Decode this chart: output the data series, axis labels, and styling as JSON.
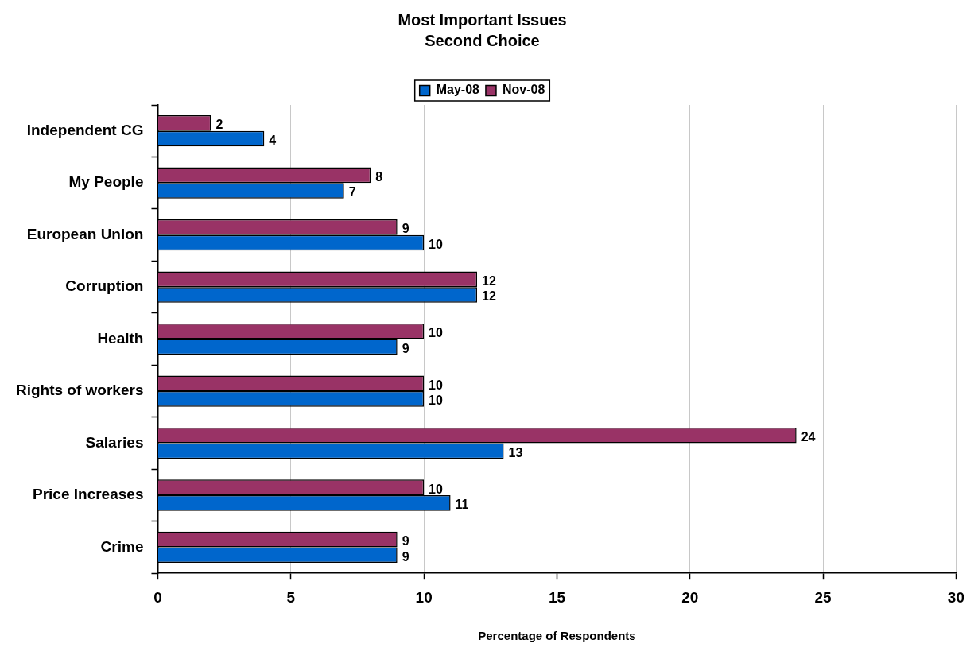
{
  "chart_data": {
    "type": "bar",
    "orientation": "horizontal",
    "title": "Most Important Issues",
    "subtitle": "Second Choice",
    "xlabel": "Percentage of Respondents",
    "categories": [
      "Independent CG",
      "My People",
      "European Union",
      "Corruption",
      "Health",
      "Rights of workers",
      "Salaries",
      "Price Increases",
      "Crime"
    ],
    "series": [
      {
        "name": "May-08",
        "color": "#0066cc",
        "values": [
          4,
          7,
          10,
          12,
          9,
          10,
          13,
          11,
          9
        ]
      },
      {
        "name": "Nov-08",
        "color": "#993366",
        "values": [
          2,
          8,
          9,
          12,
          10,
          10,
          24,
          10,
          9
        ]
      }
    ],
    "xlim": [
      0,
      30
    ],
    "xticks": [
      0,
      5,
      10,
      15,
      20,
      25,
      30
    ],
    "grid": "x",
    "legend": "top",
    "data_labels": true
  }
}
